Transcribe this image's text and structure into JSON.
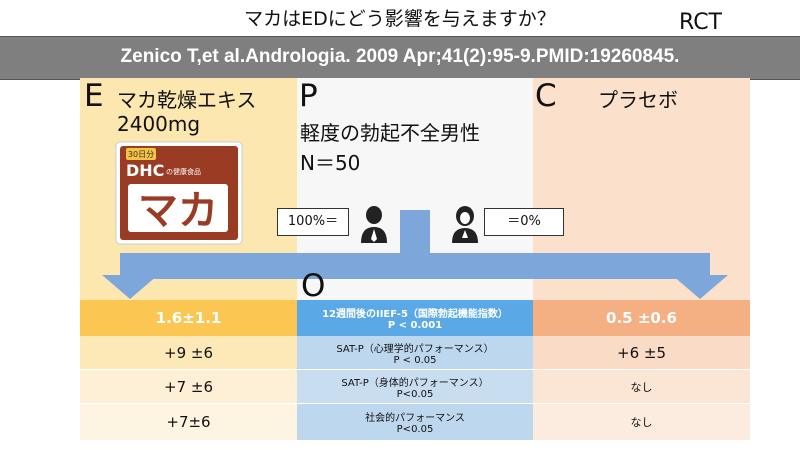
{
  "title": "マカはEDにどう影響を与えますか？",
  "badge": "RCT",
  "citation": "Zenico T,et al.Andrologia. 2009 Apr;41(2):95-9.PMID:19260845.",
  "pico": {
    "e_letter": "E",
    "e_product": "マカ乾燥エキス",
    "e_dose": "2400mg",
    "p_letter": "P",
    "p_population": "軽度の勃起不全男性",
    "p_n": "N＝50",
    "c_letter": "C",
    "c_name": "プラセボ",
    "o_letter": "O"
  },
  "product_box": {
    "days": "30日分",
    "brand": "DHC",
    "subtitle": "の健康食品",
    "name": "マカ"
  },
  "split": {
    "left_label": "100%＝",
    "right_label": "＝0%"
  },
  "colors": {
    "header_bar": "#7f7f7f",
    "e_bg": "#fde7b0",
    "c_bg": "#fbe0cc",
    "arrow": "#7da7da",
    "o_header": "#5aa9e6",
    "o_rows": "#bdd7ee",
    "e_header": "#fcc653",
    "c_header": "#f4b083"
  },
  "outcomes": [
    {
      "e": "1.6±1.1",
      "o1": "12週間後のIIEF-5（国際勃起機能指数）",
      "o2": "P < 0.001",
      "c": "0.5 ±0.6"
    },
    {
      "e": "+9 ±6",
      "o1": "SAT-P（心理学的パフォーマンス）",
      "o2": "P < 0.05",
      "c": "+6 ±5"
    },
    {
      "e": "+7 ±6",
      "o1": "SAT-P（身体的パフォーマンス）",
      "o2": "P<0.05",
      "c": "なし"
    },
    {
      "e": "+7±6",
      "o1": "社会的パフォーマンス",
      "o2": "P<0.05",
      "c": "なし"
    }
  ]
}
